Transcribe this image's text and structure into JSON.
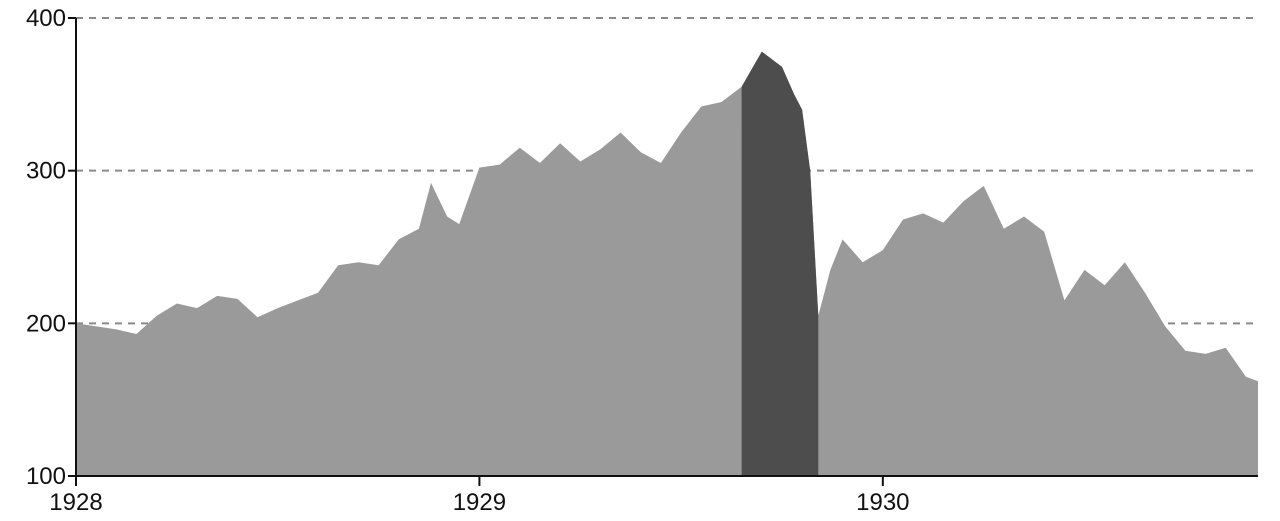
{
  "chart_data": {
    "type": "area",
    "title": "",
    "xlabel": "",
    "ylabel": "",
    "xlim": [
      1928.0,
      1930.93
    ],
    "ylim": [
      100,
      400
    ],
    "x_tick_labels": [
      "1928",
      "1929",
      "1930"
    ],
    "x_tick_values": [
      1928.0,
      1929.0,
      1930.0
    ],
    "y_tick_labels": [
      "100",
      "200",
      "300",
      "400"
    ],
    "y_tick_values": [
      100,
      200,
      300,
      400
    ],
    "grid": "horizontal dashed",
    "colors": {
      "area": "#9a9a9a",
      "highlight": "#4d4d4d",
      "grid": "#8a8a8a",
      "axis": "#111111"
    },
    "highlight_range": [
      1929.65,
      1929.84
    ],
    "x": [
      1928.0,
      1928.05,
      1928.1,
      1928.15,
      1928.2,
      1928.25,
      1928.3,
      1928.35,
      1928.4,
      1928.45,
      1928.5,
      1928.55,
      1928.6,
      1928.65,
      1928.7,
      1928.75,
      1928.8,
      1928.85,
      1928.88,
      1928.92,
      1928.95,
      1929.0,
      1929.05,
      1929.1,
      1929.15,
      1929.2,
      1929.25,
      1929.3,
      1929.35,
      1929.4,
      1929.45,
      1929.5,
      1929.55,
      1929.6,
      1929.65,
      1929.7,
      1929.75,
      1929.78,
      1929.8,
      1929.82,
      1929.84,
      1929.87,
      1929.9,
      1929.95,
      1930.0,
      1930.05,
      1930.1,
      1930.15,
      1930.2,
      1930.25,
      1930.3,
      1930.35,
      1930.4,
      1930.45,
      1930.5,
      1930.55,
      1930.6,
      1930.65,
      1930.7,
      1930.75,
      1930.8,
      1930.85,
      1930.9,
      1930.93
    ],
    "values": [
      200,
      198,
      196,
      193,
      205,
      213,
      210,
      218,
      216,
      204,
      210,
      215,
      220,
      238,
      240,
      238,
      255,
      262,
      292,
      270,
      265,
      302,
      304,
      315,
      305,
      318,
      306,
      314,
      325,
      312,
      305,
      325,
      342,
      345,
      355,
      378,
      368,
      350,
      340,
      300,
      205,
      235,
      255,
      240,
      248,
      268,
      272,
      266,
      280,
      290,
      262,
      270,
      260,
      215,
      235,
      225,
      240,
      220,
      198,
      182,
      180,
      184,
      165,
      162
    ]
  }
}
